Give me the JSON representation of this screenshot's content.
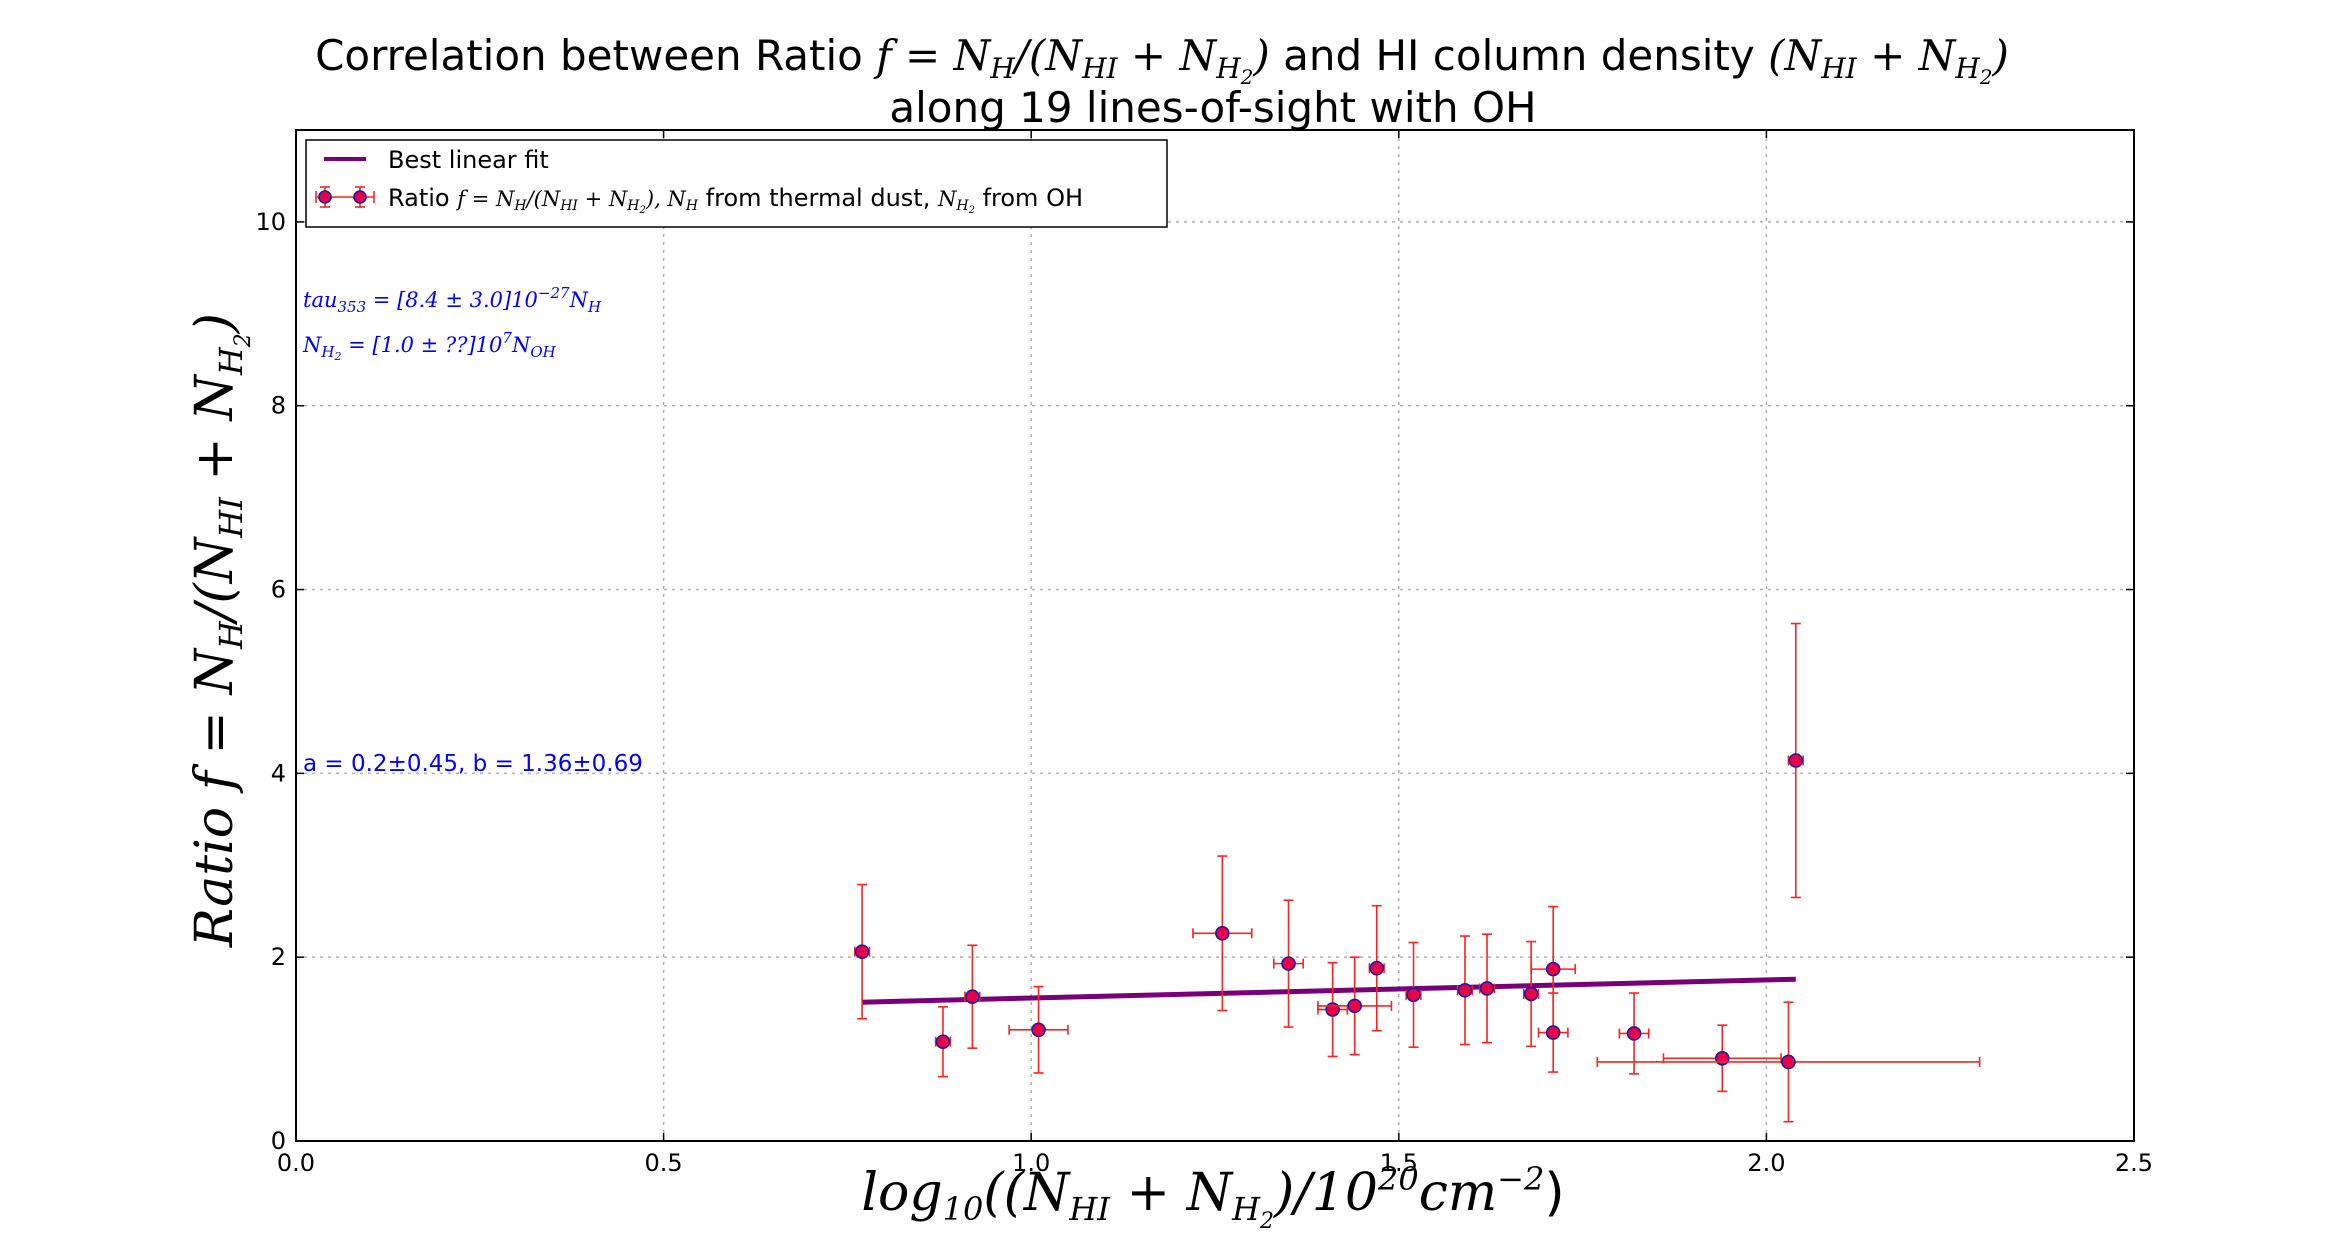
{
  "chart_data": {
    "type": "scatter",
    "title_line1_parts": [
      "Correlation between Ratio ",
      "f = N",
      "H",
      "/(N",
      "HI",
      " + N",
      "H",
      "2",
      ")",
      " and HI column density ",
      "(N",
      "HI",
      " + N",
      "H",
      "2",
      ")"
    ],
    "title_line2": "along 19 lines-of-sight with OH",
    "xlabel": "log10((N_HI + N_H2)/10^20 cm^-2)",
    "ylabel": "Ratio f = N_H/(N_HI + N_H2)",
    "xlim": [
      0.0,
      2.5
    ],
    "ylim": [
      0,
      11
    ],
    "x_ticks": [
      "0.0",
      "0.5",
      "1.0",
      "1.5",
      "2.0",
      "2.5"
    ],
    "x_tick_values": [
      0.0,
      0.5,
      1.0,
      1.5,
      2.0,
      2.5
    ],
    "y_ticks": [
      "0",
      "2",
      "4",
      "6",
      "8",
      "10"
    ],
    "y_tick_values": [
      0,
      2,
      4,
      6,
      8,
      10
    ],
    "grid": true,
    "legend_placement": "top-left",
    "legend": [
      {
        "label": "Best linear fit",
        "kind": "line",
        "color": "#7a007a"
      },
      {
        "label": "Ratio f = N_H/(N_HI + N_H2), N_H from thermal dust, N_H2 from OH",
        "kind": "errorbar",
        "color": "#e8004a"
      }
    ],
    "annotations": [
      "tau353 = [8.4 ± 3.0]10^-27 N_H",
      "N_H2 = [1.0 ± ??]10^7 N_OH",
      "a = 0.2±0.45,  b = 1.36±0.69"
    ],
    "fit": {
      "x": [
        0.77,
        2.04
      ],
      "y": [
        1.51,
        1.76
      ],
      "color": "#7a007a"
    },
    "points": [
      {
        "x": 0.77,
        "y": 2.06,
        "xerr": 0.01,
        "yerr": 0.73
      },
      {
        "x": 0.88,
        "y": 1.08,
        "xerr": 0.01,
        "yerr": 0.38
      },
      {
        "x": 0.92,
        "y": 1.57,
        "xerr": 0.01,
        "yerr": 0.56
      },
      {
        "x": 1.01,
        "y": 1.21,
        "xerr": 0.04,
        "yerr": 0.47
      },
      {
        "x": 1.26,
        "y": 2.26,
        "xerr": 0.04,
        "yerr": 0.84
      },
      {
        "x": 1.35,
        "y": 1.93,
        "xerr": 0.02,
        "yerr": 0.69
      },
      {
        "x": 1.41,
        "y": 1.43,
        "xerr": 0.02,
        "yerr": 0.51
      },
      {
        "x": 1.44,
        "y": 1.47,
        "xerr": 0.05,
        "yerr": 0.53
      },
      {
        "x": 1.47,
        "y": 1.88,
        "xerr": 0.01,
        "yerr": 0.68
      },
      {
        "x": 1.52,
        "y": 1.59,
        "xerr": 0.01,
        "yerr": 0.57
      },
      {
        "x": 1.59,
        "y": 1.64,
        "xerr": 0.01,
        "yerr": 0.59
      },
      {
        "x": 1.62,
        "y": 1.66,
        "xerr": 0.01,
        "yerr": 0.59
      },
      {
        "x": 1.68,
        "y": 1.6,
        "xerr": 0.01,
        "yerr": 0.57
      },
      {
        "x": 1.71,
        "y": 1.87,
        "xerr": 0.03,
        "yerr": 0.68
      },
      {
        "x": 1.71,
        "y": 1.18,
        "xerr": 0.02,
        "yerr": 0.43
      },
      {
        "x": 1.82,
        "y": 1.17,
        "xerr": 0.02,
        "yerr": 0.44
      },
      {
        "x": 1.94,
        "y": 0.9,
        "xerr": 0.08,
        "yerr": 0.36
      },
      {
        "x": 2.03,
        "y": 0.86,
        "xerr": 0.26,
        "yerr": 0.65
      },
      {
        "x": 2.04,
        "y": 4.14,
        "xerr": 0.01,
        "yerr": 1.49
      }
    ]
  }
}
